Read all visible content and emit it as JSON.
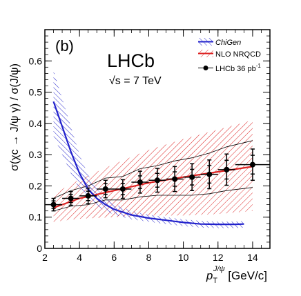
{
  "chart_data": {
    "type": "scatter",
    "panel_label": "(b)",
    "experiment": "LHCb",
    "energy": "√s = 7 TeV",
    "xlabel": {
      "main": "p",
      "sub": "T",
      "sup": "J/ψ",
      "unit": " [GeV/c]"
    },
    "ylabel": "σ(χc → J/ψ γ) / σ(J/ψ)",
    "xlim": [
      2,
      15
    ],
    "ylim": [
      0,
      0.7
    ],
    "x_ticks": [
      2,
      4,
      6,
      8,
      10,
      12,
      14
    ],
    "y_ticks": [
      0,
      0.1,
      0.2,
      0.3,
      0.4,
      0.5,
      0.6
    ],
    "x_tick_labels": [
      "2",
      "4",
      "6",
      "8",
      "10",
      "12",
      "14"
    ],
    "y_tick_labels": [
      "0",
      "0.1",
      "0.2",
      "0.3",
      "0.4",
      "0.5",
      "0.6"
    ],
    "legend": [
      {
        "label": "ChiGen",
        "style": "italic"
      },
      {
        "label": "NLO NRQCD",
        "style": "normal"
      },
      {
        "label": "LHCb 36 pb",
        "sup": "-1",
        "style": "normal"
      }
    ],
    "colors": {
      "chigen": "#2222cc",
      "nrqcd": "#dd2222",
      "data": "#000000"
    },
    "series": [
      {
        "name": "LHCb 36 pb-1",
        "x": [
          2.5,
          3.5,
          4.5,
          5.5,
          6.5,
          7.5,
          8.5,
          9.5,
          10.5,
          11.5,
          12.5,
          14.0
        ],
        "xerr": [
          0.5,
          0.5,
          0.5,
          0.5,
          0.5,
          0.5,
          0.5,
          0.5,
          0.5,
          0.5,
          0.5,
          1.0
        ],
        "y": [
          0.14,
          0.16,
          0.168,
          0.19,
          0.19,
          0.212,
          0.218,
          0.222,
          0.228,
          0.237,
          0.252,
          0.268
        ],
        "yerr_stat": [
          0.012,
          0.013,
          0.015,
          0.017,
          0.018,
          0.02,
          0.022,
          0.023,
          0.025,
          0.028,
          0.03,
          0.03
        ],
        "yerr_tot": [
          0.02,
          0.022,
          0.025,
          0.028,
          0.03,
          0.035,
          0.038,
          0.04,
          0.043,
          0.046,
          0.05,
          0.05
        ],
        "syst_band_low": [
          0.12,
          0.135,
          0.14,
          0.155,
          0.155,
          0.165,
          0.17,
          0.17,
          0.17,
          0.175,
          0.185,
          0.195
        ],
        "syst_band_high": [
          0.16,
          0.185,
          0.2,
          0.225,
          0.23,
          0.255,
          0.265,
          0.28,
          0.29,
          0.305,
          0.325,
          0.345
        ]
      },
      {
        "name": "NLO NRQCD",
        "x": [
          2.5,
          4,
          6,
          8,
          10,
          12,
          14
        ],
        "y": [
          0.13,
          0.16,
          0.185,
          0.21,
          0.228,
          0.245,
          0.262
        ],
        "band_low": [
          0.085,
          0.095,
          0.1,
          0.105,
          0.105,
          0.11,
          0.12
        ],
        "band_high": [
          0.175,
          0.22,
          0.27,
          0.315,
          0.35,
          0.38,
          0.41
        ]
      },
      {
        "name": "ChiGen",
        "x": [
          2.5,
          3,
          3.5,
          4,
          4.5,
          5,
          5.5,
          6,
          7,
          8,
          9,
          10,
          11,
          12,
          13,
          13.5
        ],
        "y": [
          0.47,
          0.39,
          0.31,
          0.24,
          0.19,
          0.16,
          0.14,
          0.125,
          0.107,
          0.097,
          0.09,
          0.083,
          0.078,
          0.077,
          0.077,
          0.078
        ],
        "band_low": [
          0.36,
          0.3,
          0.24,
          0.19,
          0.155,
          0.135,
          0.12,
          0.108,
          0.093,
          0.085,
          0.078,
          0.071,
          0.067,
          0.065,
          0.065,
          0.067
        ],
        "band_high": [
          0.57,
          0.48,
          0.39,
          0.3,
          0.235,
          0.19,
          0.16,
          0.142,
          0.12,
          0.108,
          0.1,
          0.093,
          0.088,
          0.086,
          0.086,
          0.088
        ]
      }
    ]
  }
}
